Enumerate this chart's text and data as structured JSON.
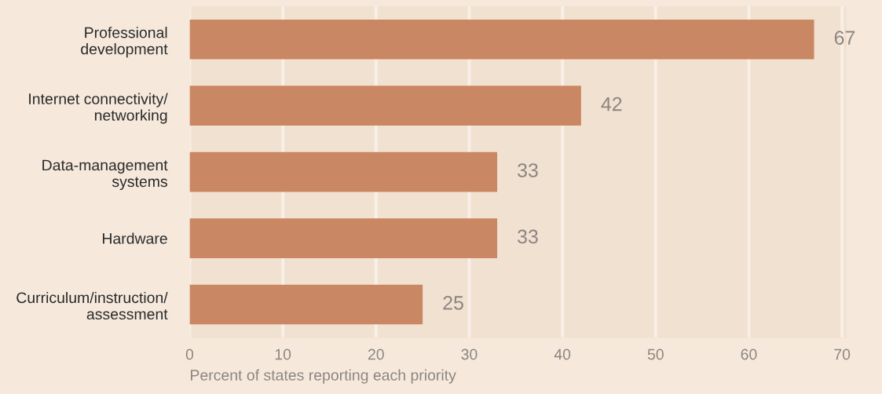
{
  "chart_data": {
    "type": "bar",
    "orientation": "horizontal",
    "xlabel": "Percent of states reporting each priority",
    "categories": [
      "Professional\ndevelopment",
      "Internet connectivity/\nnetworking",
      "Data-management\nsystems",
      "Hardware",
      "Curriculum/instruction/\nassessment"
    ],
    "values": [
      67,
      42,
      33,
      33,
      25
    ],
    "color": "#c98763",
    "xlim": [
      0,
      70.5
    ],
    "xticks": [
      0,
      10,
      20,
      30,
      40,
      50,
      60,
      70
    ],
    "grid": "x",
    "data_labels": true
  }
}
